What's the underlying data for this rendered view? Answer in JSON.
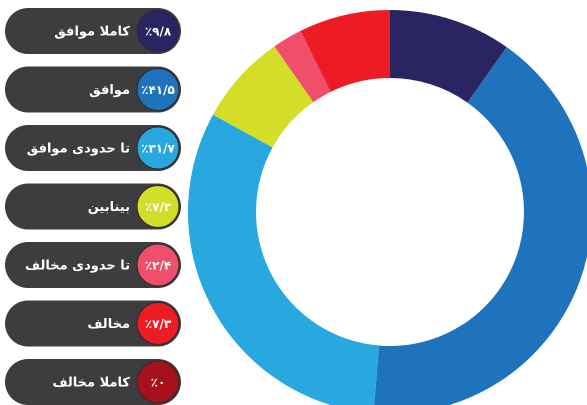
{
  "chart_data": {
    "type": "donut",
    "categories": [
      "کاملا موافق",
      "موافق",
      "تا حدودی موافق",
      "بینابین",
      "تا حدودی مخالف",
      "مخالف",
      "کاملا مخالف"
    ],
    "values": [
      9.8,
      41.5,
      31.7,
      7.3,
      2.4,
      7.3,
      0
    ],
    "value_labels": [
      "٪۹/۸",
      "٪۴۱/۵",
      "٪۳۱/۷",
      "٪۷/۳",
      "٪۲/۴",
      "٪۷/۳",
      "٪۰"
    ],
    "colors": [
      "#2b2462",
      "#1f73bd",
      "#29a8e0",
      "#d4dd27",
      "#ef4f6a",
      "#ed1c24",
      "#a6121b"
    ]
  }
}
